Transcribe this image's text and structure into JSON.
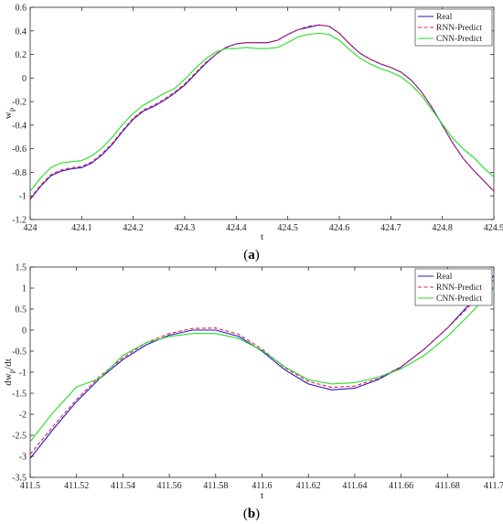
{
  "chart_data": [
    {
      "type": "line",
      "caption_open": "(",
      "caption_letter": "a",
      "caption_close": ")",
      "xlabel": "t",
      "ylabel_main": "w",
      "ylabel_sub": "P",
      "xlim": [
        424,
        424.9
      ],
      "ylim": [
        -1.2,
        0.6
      ],
      "xticks": [
        424,
        424.1,
        424.2,
        424.3,
        424.4,
        424.5,
        424.6,
        424.7,
        424.8,
        424.9
      ],
      "xtick_labels": [
        "424",
        "424.1",
        "424.2",
        "424.3",
        "424.4",
        "424.5",
        "424.6",
        "424.7",
        "424.8",
        "424.9"
      ],
      "yticks": [
        -1.2,
        -1,
        -0.8,
        -0.6,
        -0.4,
        -0.2,
        0,
        0.2,
        0.4,
        0.6
      ],
      "ytick_labels": [
        "-1.2",
        "-1",
        "-0.8",
        "-0.6",
        "-0.4",
        "-0.2",
        "0",
        "0.2",
        "0.4",
        "0.6"
      ],
      "grid": false,
      "legend_position": "top-right",
      "series": [
        {
          "name": "Real",
          "color": "#2a14c8",
          "style": "solid",
          "x": [
            424,
            424.02,
            424.04,
            424.06,
            424.08,
            424.1,
            424.12,
            424.14,
            424.16,
            424.18,
            424.2,
            424.22,
            424.24,
            424.26,
            424.28,
            424.3,
            424.32,
            424.34,
            424.36,
            424.38,
            424.4,
            424.42,
            424.44,
            424.46,
            424.48,
            424.5,
            424.52,
            424.54,
            424.56,
            424.58,
            424.6,
            424.62,
            424.64,
            424.66,
            424.68,
            424.7,
            424.72,
            424.74,
            424.76,
            424.78,
            424.8,
            424.82,
            424.84,
            424.86,
            424.88,
            424.9
          ],
          "y": [
            -1.03,
            -0.92,
            -0.83,
            -0.79,
            -0.77,
            -0.76,
            -0.72,
            -0.65,
            -0.56,
            -0.45,
            -0.35,
            -0.28,
            -0.24,
            -0.19,
            -0.13,
            -0.06,
            0.03,
            0.12,
            0.2,
            0.26,
            0.29,
            0.3,
            0.3,
            0.3,
            0.32,
            0.37,
            0.41,
            0.43,
            0.45,
            0.44,
            0.38,
            0.29,
            0.21,
            0.16,
            0.12,
            0.09,
            0.05,
            -0.02,
            -0.12,
            -0.25,
            -0.4,
            -0.55,
            -0.68,
            -0.78,
            -0.87,
            -0.96
          ]
        },
        {
          "name": "RNN-Predict",
          "color": "#e0204a",
          "style": "dashed",
          "x": [
            424,
            424.02,
            424.04,
            424.06,
            424.08,
            424.1,
            424.12,
            424.14,
            424.16,
            424.18,
            424.2,
            424.22,
            424.24,
            424.26,
            424.28,
            424.3,
            424.32,
            424.34,
            424.36,
            424.38,
            424.4,
            424.42,
            424.44,
            424.46,
            424.48,
            424.5,
            424.52,
            424.54,
            424.56,
            424.58,
            424.6,
            424.62,
            424.64,
            424.66,
            424.68,
            424.7,
            424.72,
            424.74,
            424.76,
            424.78,
            424.8,
            424.82,
            424.84,
            424.86,
            424.88,
            424.9
          ],
          "y": [
            -1.02,
            -0.91,
            -0.82,
            -0.78,
            -0.76,
            -0.75,
            -0.71,
            -0.64,
            -0.55,
            -0.44,
            -0.34,
            -0.27,
            -0.23,
            -0.18,
            -0.12,
            -0.05,
            0.04,
            0.13,
            0.2,
            0.26,
            0.29,
            0.3,
            0.3,
            0.3,
            0.32,
            0.37,
            0.41,
            0.44,
            0.45,
            0.44,
            0.38,
            0.29,
            0.21,
            0.16,
            0.12,
            0.09,
            0.05,
            -0.02,
            -0.12,
            -0.25,
            -0.4,
            -0.55,
            -0.68,
            -0.78,
            -0.87,
            -0.96
          ]
        },
        {
          "name": "CNN-Predict",
          "color": "#22dd22",
          "style": "solid",
          "x": [
            424,
            424.02,
            424.04,
            424.06,
            424.08,
            424.1,
            424.12,
            424.14,
            424.16,
            424.18,
            424.2,
            424.22,
            424.24,
            424.26,
            424.28,
            424.3,
            424.32,
            424.34,
            424.36,
            424.38,
            424.4,
            424.42,
            424.44,
            424.46,
            424.48,
            424.5,
            424.52,
            424.54,
            424.56,
            424.58,
            424.6,
            424.62,
            424.64,
            424.66,
            424.68,
            424.7,
            424.72,
            424.74,
            424.76,
            424.78,
            424.8,
            424.82,
            424.84,
            424.86,
            424.88,
            424.9
          ],
          "y": [
            -0.96,
            -0.85,
            -0.76,
            -0.72,
            -0.71,
            -0.7,
            -0.66,
            -0.59,
            -0.5,
            -0.39,
            -0.3,
            -0.23,
            -0.18,
            -0.13,
            -0.09,
            -0.01,
            0.08,
            0.16,
            0.22,
            0.25,
            0.25,
            0.26,
            0.25,
            0.25,
            0.26,
            0.3,
            0.35,
            0.37,
            0.38,
            0.37,
            0.32,
            0.24,
            0.17,
            0.12,
            0.08,
            0.05,
            0.01,
            -0.06,
            -0.15,
            -0.27,
            -0.39,
            -0.51,
            -0.6,
            -0.67,
            -0.76,
            -0.84
          ]
        }
      ]
    },
    {
      "type": "line",
      "caption_open": "(",
      "caption_letter": "b",
      "caption_close": ")",
      "xlabel": "t",
      "ylabel_main": "dw",
      "ylabel_sub": "P",
      "ylabel_tail": "/dt",
      "xlim": [
        411.5,
        411.7
      ],
      "ylim": [
        -3.5,
        1.5
      ],
      "xticks": [
        411.5,
        411.52,
        411.54,
        411.56,
        411.58,
        411.6,
        411.62,
        411.64,
        411.66,
        411.68,
        411.7
      ],
      "xtick_labels": [
        "411.5",
        "411.52",
        "411.54",
        "411.56",
        "411.58",
        "411.6",
        "411.62",
        "411.64",
        "411.66",
        "411.68",
        "411.7"
      ],
      "yticks": [
        -3.5,
        -3,
        -2.5,
        -2,
        -1.5,
        -1,
        -0.5,
        0,
        0.5,
        1,
        1.5
      ],
      "ytick_labels": [
        "-3.5",
        "-3",
        "-2.5",
        "-2",
        "-1.5",
        "-1",
        "-0.5",
        "0",
        "0.5",
        "1",
        "1.5"
      ],
      "grid": false,
      "legend_position": "top-right",
      "series": [
        {
          "name": "Real",
          "color": "#2a14c8",
          "style": "solid",
          "x": [
            411.5,
            411.51,
            411.52,
            411.53,
            411.54,
            411.55,
            411.56,
            411.57,
            411.58,
            411.59,
            411.6,
            411.61,
            411.62,
            411.63,
            411.64,
            411.65,
            411.66,
            411.67,
            411.68,
            411.69,
            411.7
          ],
          "y": [
            -3.05,
            -2.35,
            -1.7,
            -1.15,
            -0.7,
            -0.35,
            -0.12,
            0.0,
            0.0,
            -0.15,
            -0.5,
            -0.95,
            -1.28,
            -1.42,
            -1.38,
            -1.18,
            -0.88,
            -0.45,
            0.05,
            0.65,
            1.3
          ]
        },
        {
          "name": "RNN-Predict",
          "color": "#e0204a",
          "style": "dashed",
          "x": [
            411.5,
            411.51,
            411.52,
            411.53,
            411.54,
            411.55,
            411.56,
            411.57,
            411.58,
            411.59,
            411.6,
            411.61,
            411.62,
            411.63,
            411.64,
            411.65,
            411.66,
            411.67,
            411.68,
            411.69,
            411.7
          ],
          "y": [
            -2.95,
            -2.28,
            -1.65,
            -1.1,
            -0.66,
            -0.3,
            -0.08,
            0.04,
            0.05,
            -0.1,
            -0.45,
            -0.9,
            -1.22,
            -1.36,
            -1.33,
            -1.15,
            -0.87,
            -0.45,
            0.05,
            0.6,
            1.2
          ]
        },
        {
          "name": "CNN-Predict",
          "color": "#22dd22",
          "style": "solid",
          "x": [
            411.5,
            411.51,
            411.52,
            411.525,
            411.53,
            411.54,
            411.55,
            411.56,
            411.57,
            411.58,
            411.59,
            411.6,
            411.61,
            411.62,
            411.63,
            411.64,
            411.65,
            411.66,
            411.67,
            411.68,
            411.69,
            411.7
          ],
          "y": [
            -2.65,
            -1.95,
            -1.35,
            -1.25,
            -1.15,
            -0.6,
            -0.3,
            -0.15,
            -0.08,
            -0.08,
            -0.2,
            -0.48,
            -0.88,
            -1.18,
            -1.28,
            -1.25,
            -1.12,
            -0.92,
            -0.6,
            -0.15,
            0.4,
            1.0
          ]
        }
      ]
    }
  ]
}
